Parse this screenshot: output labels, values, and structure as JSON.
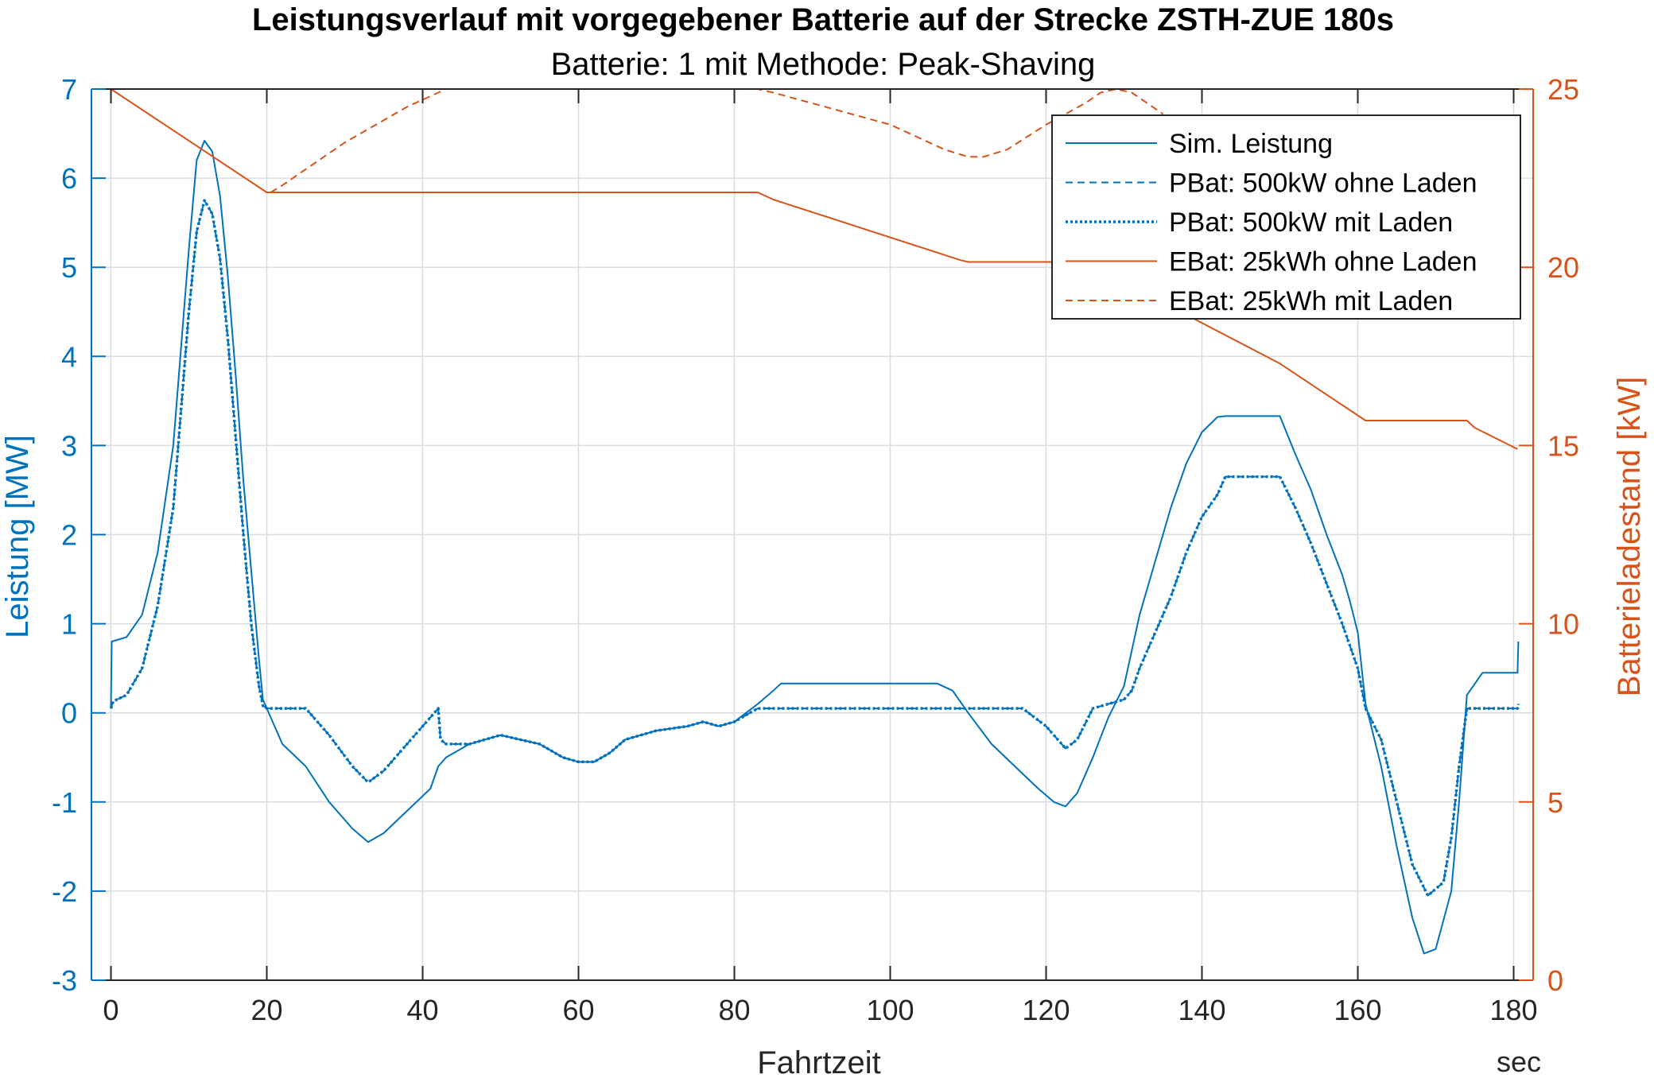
{
  "chart_data": {
    "type": "line",
    "title": "Leistungsverlauf mit vorgegebener Batterie auf der Strecke ZSTH-ZUE 180s",
    "subtitle": "Batterie: 1 mit Methode: Peak-Shaving",
    "xlabel": "Fahrtzeit",
    "xunit": "sec",
    "ylabel_left": "Leistung [MW]",
    "ylabel_right": "Batterieladestand [kW]",
    "xlim": [
      -2.5,
      182.5
    ],
    "ylim_left": [
      -3,
      7
    ],
    "ylim_right": [
      0,
      25
    ],
    "xticks": [
      0,
      20,
      40,
      60,
      80,
      100,
      120,
      140,
      160,
      180
    ],
    "yticks_left": [
      -3,
      -2,
      -1,
      0,
      1,
      2,
      3,
      4,
      5,
      6,
      7
    ],
    "yticks_right": [
      0,
      5,
      10,
      15,
      20,
      25
    ],
    "grid": true,
    "legend_position": "top-right",
    "colors": {
      "left_axis": "#0072BD",
      "right_axis": "#D95319",
      "grid": "#d9dde3"
    },
    "series": [
      {
        "name": "Sim. Leistung",
        "axis": "left",
        "style": "solid",
        "color": "#0072BD",
        "x": [
          0,
          0.1,
          2,
          4,
          6,
          8,
          10,
          11,
          12,
          13,
          14,
          15,
          16,
          17,
          18,
          19,
          19.5,
          20,
          22,
          25,
          28,
          31,
          33,
          35,
          38,
          41,
          42,
          43,
          46,
          50,
          55,
          58,
          60,
          62,
          64,
          66,
          70,
          74,
          76,
          78,
          80,
          83,
          85,
          86,
          100,
          106,
          108,
          110,
          113,
          116,
          119,
          121,
          122.5,
          124,
          126,
          128,
          130,
          131,
          132,
          134,
          136,
          138,
          140,
          142,
          143,
          150,
          152,
          154,
          156,
          158,
          159,
          160,
          161,
          163,
          165,
          167,
          168.5,
          170,
          172,
          173,
          174,
          176,
          180,
          180.5,
          180.6
        ],
        "y": [
          0.05,
          0.8,
          0.85,
          1.1,
          1.8,
          3.0,
          5.2,
          6.2,
          6.42,
          6.3,
          5.8,
          4.9,
          3.8,
          2.6,
          1.6,
          0.6,
          0.15,
          0.05,
          -0.35,
          -0.6,
          -1.0,
          -1.3,
          -1.45,
          -1.35,
          -1.1,
          -0.85,
          -0.6,
          -0.5,
          -0.35,
          -0.25,
          -0.35,
          -0.5,
          -0.55,
          -0.55,
          -0.45,
          -0.3,
          -0.2,
          -0.15,
          -0.1,
          -0.15,
          -0.1,
          0.1,
          0.25,
          0.33,
          0.33,
          0.33,
          0.25,
          0.0,
          -0.35,
          -0.6,
          -0.85,
          -1.0,
          -1.05,
          -0.9,
          -0.5,
          -0.05,
          0.3,
          0.7,
          1.1,
          1.7,
          2.3,
          2.8,
          3.15,
          3.32,
          3.33,
          3.33,
          2.9,
          2.5,
          2.0,
          1.55,
          1.25,
          0.9,
          0.1,
          -0.6,
          -1.5,
          -2.3,
          -2.7,
          -2.65,
          -2.0,
          -1.0,
          0.2,
          0.45,
          0.45,
          0.45,
          0.8
        ]
      },
      {
        "name": "PBat: 500kW ohne Laden",
        "axis": "left",
        "style": "dashed",
        "color": "#0072BD",
        "x": [
          0,
          0.3,
          2,
          4,
          6,
          8,
          10,
          11,
          12,
          13,
          14,
          15,
          16,
          17,
          18,
          19,
          19.5,
          20,
          25,
          28,
          31,
          33,
          35,
          38,
          41,
          42,
          42.3,
          43,
          46,
          50,
          55,
          58,
          60,
          62,
          64,
          66,
          70,
          74,
          76,
          78,
          80,
          83,
          85,
          100,
          110,
          113,
          117,
          120,
          122.5,
          124,
          126,
          128,
          130,
          131,
          132,
          134,
          136,
          138,
          140,
          142,
          143,
          150,
          152,
          154,
          156,
          158,
          159,
          160,
          161,
          163,
          165,
          167,
          169,
          171,
          172,
          173,
          174,
          176,
          180,
          180.5,
          180.6
        ],
        "y": [
          0.05,
          0.13,
          0.2,
          0.5,
          1.2,
          2.3,
          4.5,
          5.4,
          5.75,
          5.6,
          5.1,
          4.2,
          3.1,
          2.0,
          1.0,
          0.3,
          0.08,
          0.05,
          0.05,
          -0.25,
          -0.6,
          -0.78,
          -0.65,
          -0.35,
          -0.05,
          0.05,
          -0.3,
          -0.35,
          -0.35,
          -0.25,
          -0.35,
          -0.5,
          -0.55,
          -0.55,
          -0.45,
          -0.3,
          -0.2,
          -0.15,
          -0.1,
          -0.15,
          -0.1,
          0.05,
          0.05,
          0.05,
          0.05,
          0.05,
          0.05,
          -0.15,
          -0.4,
          -0.3,
          0.05,
          0.1,
          0.15,
          0.25,
          0.5,
          0.9,
          1.3,
          1.8,
          2.2,
          2.45,
          2.65,
          2.65,
          2.3,
          1.9,
          1.45,
          1.0,
          0.75,
          0.5,
          0.05,
          -0.3,
          -1.0,
          -1.7,
          -2.05,
          -1.9,
          -1.4,
          -0.6,
          0.05,
          0.05,
          0.05,
          0.05,
          0.1
        ]
      },
      {
        "name": "PBat: 500kW mit Laden",
        "axis": "left",
        "style": "dotted",
        "color": "#0072BD",
        "x": [
          0,
          0.3,
          2,
          4,
          6,
          8,
          10,
          11,
          12,
          13,
          14,
          15,
          16,
          17,
          18,
          19,
          19.5,
          20,
          25,
          28,
          31,
          33,
          35,
          38,
          41,
          42,
          42.3,
          43,
          46,
          50,
          55,
          58,
          60,
          62,
          64,
          66,
          70,
          74,
          76,
          78,
          80,
          83,
          85,
          100,
          110,
          113,
          117,
          120,
          122.5,
          124,
          126,
          128,
          130,
          131,
          132,
          134,
          136,
          138,
          140,
          142,
          143,
          150,
          152,
          154,
          156,
          158,
          159,
          160,
          161,
          163,
          165,
          167,
          169,
          171,
          172,
          173,
          174,
          176,
          180,
          180.5,
          180.6
        ],
        "y": [
          0.05,
          0.13,
          0.2,
          0.5,
          1.2,
          2.3,
          4.5,
          5.4,
          5.75,
          5.6,
          5.1,
          4.2,
          3.1,
          2.0,
          1.0,
          0.3,
          0.08,
          0.05,
          0.05,
          -0.25,
          -0.6,
          -0.78,
          -0.65,
          -0.35,
          -0.05,
          0.05,
          -0.3,
          -0.35,
          -0.35,
          -0.25,
          -0.35,
          -0.5,
          -0.55,
          -0.55,
          -0.45,
          -0.3,
          -0.2,
          -0.15,
          -0.1,
          -0.15,
          -0.1,
          0.05,
          0.05,
          0.05,
          0.05,
          0.05,
          0.05,
          -0.15,
          -0.4,
          -0.3,
          0.05,
          0.1,
          0.15,
          0.25,
          0.5,
          0.9,
          1.3,
          1.8,
          2.2,
          2.45,
          2.65,
          2.65,
          2.3,
          1.9,
          1.45,
          1.0,
          0.75,
          0.5,
          0.05,
          -0.3,
          -1.0,
          -1.7,
          -2.05,
          -1.9,
          -1.4,
          -0.6,
          0.05,
          0.05,
          0.05,
          0.05,
          0.1
        ]
      },
      {
        "name": "EBat: 25kWh ohne Laden",
        "axis": "right",
        "style": "solid",
        "color": "#D95319",
        "x": [
          0,
          20,
          83,
          85,
          109,
          110,
          118,
          125,
          150,
          161,
          174,
          175,
          180.5
        ],
        "y": [
          25,
          22.1,
          22.1,
          21.9,
          20.2,
          20.15,
          20.15,
          20.15,
          17.3,
          15.7,
          15.7,
          15.5,
          14.9
        ]
      },
      {
        "name": "EBat: 25kWh mit Laden",
        "axis": "right",
        "style": "dashed",
        "color": "#D95319",
        "x": [
          20.5,
          22,
          30,
          38,
          42,
          43,
          83,
          85,
          100,
          107,
          110,
          112,
          115,
          120,
          125,
          127,
          129,
          131,
          133,
          135
        ],
        "y": [
          22.1,
          22.3,
          23.5,
          24.5,
          24.9,
          25,
          25,
          24.9,
          24,
          23.3,
          23.1,
          23.1,
          23.3,
          24,
          24.6,
          24.9,
          25,
          24.9,
          24.6,
          24.3
        ]
      }
    ]
  }
}
